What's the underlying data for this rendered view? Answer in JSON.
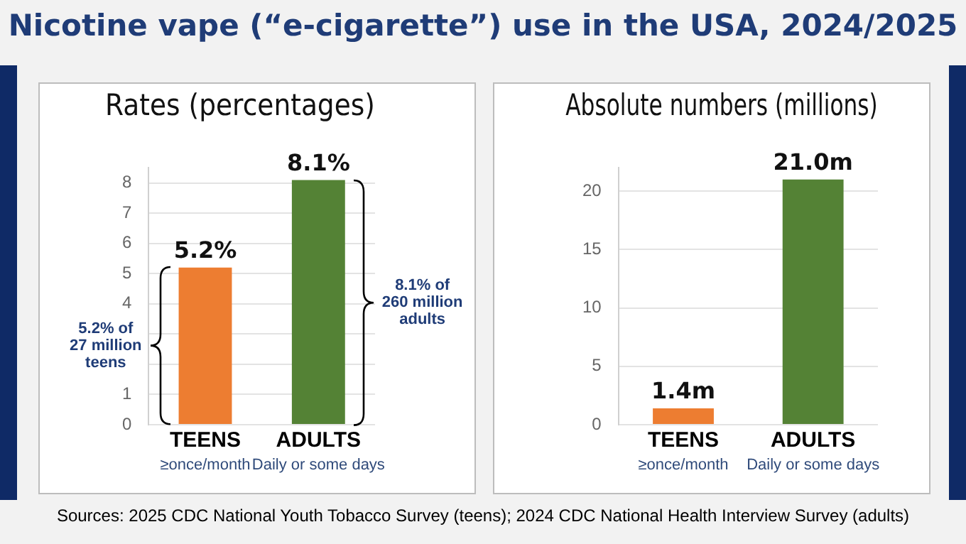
{
  "chart_data": [
    {
      "type": "bar",
      "title": "Rates (percentages)",
      "categories": [
        "TEENS\n≥once/month",
        "ADULTS\nDaily or some days"
      ],
      "values": [
        5.2,
        8.1
      ],
      "colors": [
        "#ed7d31",
        "#548235"
      ],
      "value_labels": [
        "5.2%",
        "8.1%"
      ],
      "ylim": [
        0,
        8.5
      ],
      "yticks": [
        0,
        1,
        {
          "value": 2,
          "label": null
        },
        {
          "value": 3,
          "label": null
        },
        4,
        5,
        6,
        7,
        8
      ],
      "grid": "y",
      "legend": false,
      "annotations": [
        "Nicotine vape (“e-cigarette”) use in the USA, 2024/2025",
        "5.2% of\n27 million\nteens",
        "8.1% of\n260 million\nadults"
      ]
    },
    {
      "type": "bar",
      "title": "Absolute numbers (millions)",
      "categories": [
        "TEENS\n≥once/month",
        "ADULTS\nDaily or some days"
      ],
      "values": [
        1.4,
        21.0
      ],
      "colors": [
        "#ed7d31",
        "#548235"
      ],
      "value_labels": [
        "1.4m",
        "21.0m"
      ],
      "ylim": [
        0,
        22
      ],
      "yticks": [
        0,
        5,
        10,
        15,
        20
      ],
      "grid": "y",
      "legend": false,
      "annotations": [
        "Sources:  2025 CDC National Youth Tobacco Survey (teens); 2024 CDC National Health Interview Survey (adults)"
      ]
    }
  ]
}
